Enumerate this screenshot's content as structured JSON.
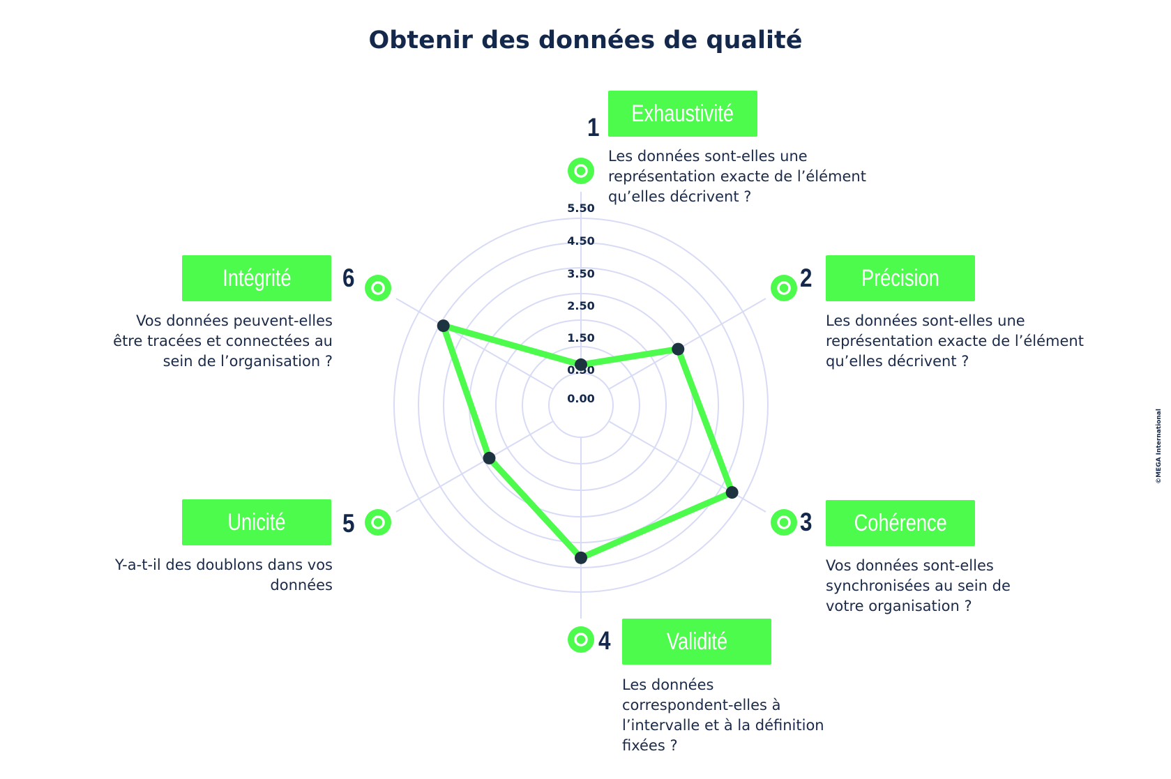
{
  "page": {
    "title": "Obtenir des données de qualité",
    "copyright": "©MEGA International"
  },
  "colors": {
    "accent_green": "#4dfb4d",
    "navy": "#14284b",
    "grid": "#d8dbf5",
    "text": "#1b2a48"
  },
  "dimensions": [
    {
      "number": "1",
      "label": "Exhaustivité",
      "question": "Les données sont-elles une représentation exacte de l’élément qu’elles décrivent ?"
    },
    {
      "number": "2",
      "label": "Précision",
      "question": "Les données sont-elles une représentation exacte de l’élément qu’elles décrivent ?"
    },
    {
      "number": "3",
      "label": "Cohérence",
      "question": "Vos données sont-elles synchronisées au sein de votre organisation ?"
    },
    {
      "number": "4",
      "label": "Validité",
      "question": "Les données correspondent-elles à l’intervalle et à la définition fixées ?"
    },
    {
      "number": "5",
      "label": "Unicité",
      "question": "Y-a-t-il des doublons dans vos données"
    },
    {
      "number": "6",
      "label": "Intégrité",
      "question": "Vos données peuvent-elles être tracées et connectées au sein de l’organisation ?"
    }
  ],
  "chart_data": {
    "type": "radar",
    "title": "Obtenir des données de qualité",
    "categories": [
      "Exhaustivité",
      "Précision",
      "Cohérence",
      "Validité",
      "Unicité",
      "Intégrité"
    ],
    "ticks": [
      "0.00",
      "0.50",
      "1.50",
      "2.50",
      "3.50",
      "4.50",
      "5.50"
    ],
    "tick_values": [
      0,
      0.5,
      1.5,
      2.5,
      3.5,
      4.5,
      5.5
    ],
    "range": [
      0,
      6
    ],
    "series": [
      {
        "values": [
          1.3,
          3.6,
          5.6,
          4.9,
          3.4,
          5.1
        ]
      }
    ]
  }
}
